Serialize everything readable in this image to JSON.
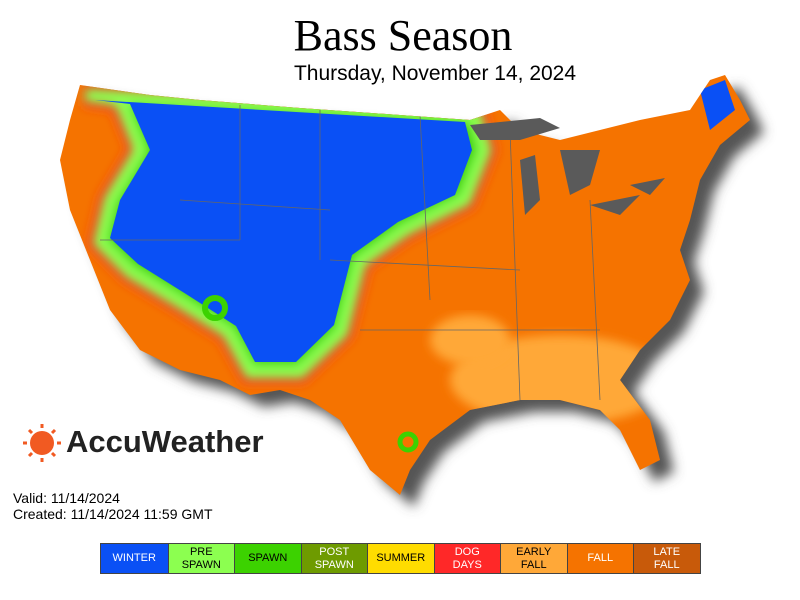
{
  "header": {
    "title": "Bass Season",
    "subtitle": "Thursday, November 14, 2024"
  },
  "brand": "AccuWeather",
  "info": {
    "valid": "Valid: 11/14/2024",
    "created": "Created: 11/14/2024 11:59 GMT"
  },
  "legend": [
    {
      "label": "WINTER",
      "color": "#0a50f5",
      "text_color": "#ffffff"
    },
    {
      "label": "PRE SPAWN",
      "color": "#8cff50",
      "text_color": "#000000"
    },
    {
      "label": "SPAWN",
      "color": "#3cd200",
      "text_color": "#000000"
    },
    {
      "label": "POST SPAWN",
      "color": "#6e9b00",
      "text_color": "#ffffff"
    },
    {
      "label": "SUMMER",
      "color": "#ffdc00",
      "text_color": "#000000"
    },
    {
      "label": "DOG DAYS",
      "color": "#ff2828",
      "text_color": "#ffffff"
    },
    {
      "label": "EARLY FALL",
      "color": "#ffa838",
      "text_color": "#000000"
    },
    {
      "label": "FALL",
      "color": "#f57300",
      "text_color": "#ffffff"
    },
    {
      "label": "LATE FALL",
      "color": "#c85a0a",
      "text_color": "#ffffff"
    }
  ]
}
